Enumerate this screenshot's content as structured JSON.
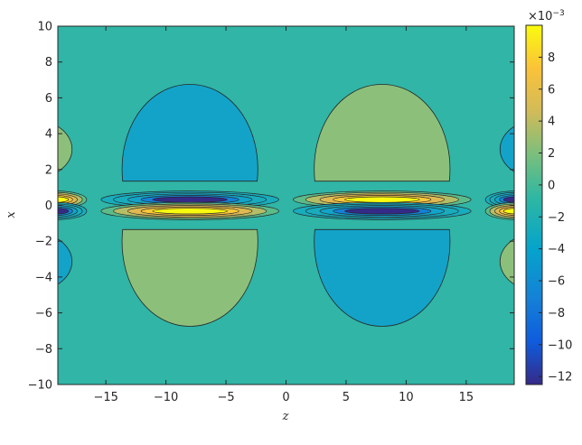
{
  "chart_data": {
    "type": "heatmap",
    "subtype": "filled-contour",
    "title": "",
    "xlabel": "z",
    "ylabel": "x",
    "xlim": [
      -19,
      19
    ],
    "ylim": [
      -10,
      10
    ],
    "xticks": [
      -15,
      -10,
      -5,
      0,
      5,
      10,
      15
    ],
    "xtick_labels": [
      "−15",
      "−10",
      "−5",
      "0",
      "5",
      "10",
      "15"
    ],
    "yticks": [
      -10,
      -8,
      -6,
      -4,
      -2,
      0,
      2,
      4,
      6,
      8,
      10
    ],
    "ytick_labels": [
      "−10",
      "−8",
      "−6",
      "−4",
      "−2",
      "0",
      "2",
      "4",
      "6",
      "8",
      "10"
    ],
    "colorbar": {
      "exponent_label": "×10",
      "exponent_power": "−3",
      "clim": [
        -12.5,
        10
      ],
      "ticks": [
        -12,
        -10,
        -8,
        -6,
        -4,
        -2,
        0,
        2,
        4,
        6,
        8
      ],
      "tick_labels": [
        "−12",
        "−10",
        "−8",
        "−6",
        "−4",
        "−2",
        "0",
        "2",
        "4",
        "6",
        "8"
      ],
      "colormap": "parula",
      "colors": [
        "#352a87",
        "#0363e1",
        "#1485d4",
        "#06a7c6",
        "#38b99e",
        "#92bf73",
        "#d9ba56",
        "#fcce2e",
        "#f9fb0e"
      ]
    },
    "field_description": "lobe pattern antisymmetric in z and x; positive lobes near (z=-8,x=+0.2), (z=+8,x=-0.2 side lobe) as depicted",
    "background_value": -1.0,
    "upper_lobes": [
      {
        "z": -8,
        "x": 4.1,
        "value": -4.2
      },
      {
        "z": 8,
        "x": 4.1,
        "value": 1.8
      },
      {
        "z": -19,
        "x": 3.5,
        "value": 1.8
      },
      {
        "z": 19,
        "x": 3.5,
        "value": -4.2
      }
    ],
    "lower_lobes": [
      {
        "z": -8,
        "x": -4.1,
        "value": 1.8
      },
      {
        "z": 8,
        "x": -4.1,
        "value": -4.2
      },
      {
        "z": -19,
        "x": -3.5,
        "value": -4.2
      },
      {
        "z": 19,
        "x": -3.5,
        "value": 1.8
      }
    ],
    "core_extrema": [
      {
        "z": -8,
        "x": 0.25,
        "value": -12
      },
      {
        "z": -8,
        "x": -0.25,
        "value": 9
      },
      {
        "z": 8,
        "x": 0.25,
        "value": 9
      },
      {
        "z": 8,
        "x": -0.25,
        "value": -12
      }
    ]
  },
  "colors": {
    "background": "#30b5a6",
    "upper_left_lobe": "#13a3c9",
    "upper_right_lobe": "#8cc07a"
  }
}
